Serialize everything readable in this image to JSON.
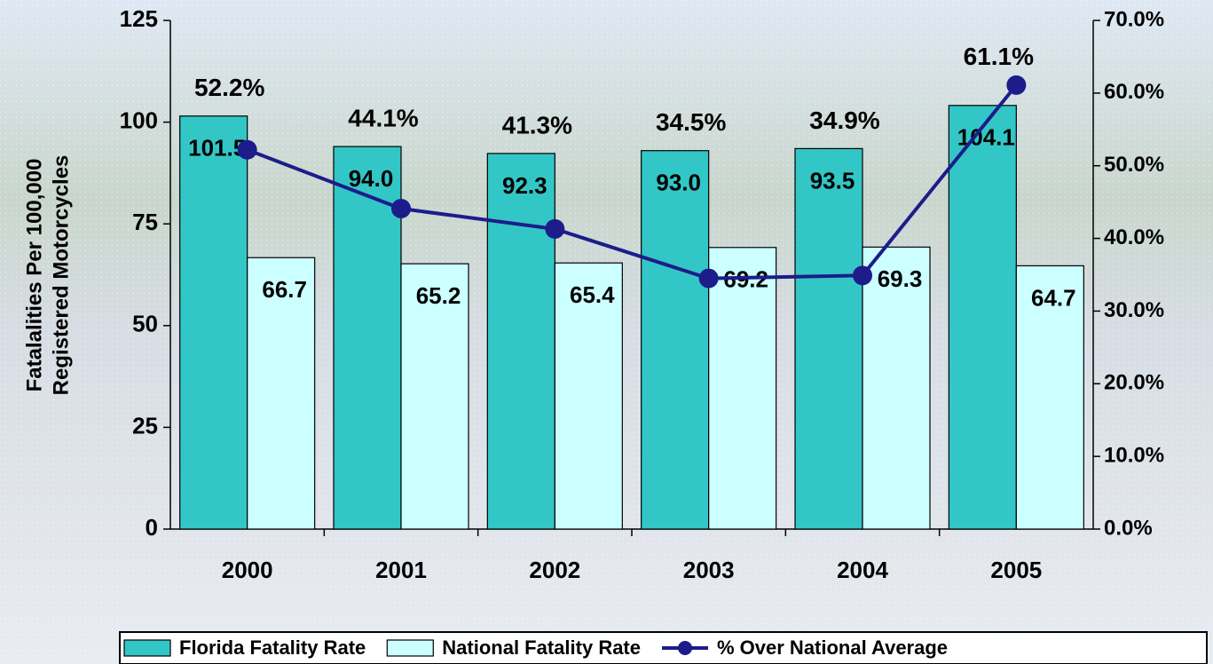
{
  "chart_data": {
    "type": "bar_line",
    "y_label": [
      "Fatalalities Per 100,000",
      "Registered Motorcycles"
    ],
    "categories": [
      "2000",
      "2001",
      "2002",
      "2003",
      "2004",
      "2005"
    ],
    "series": [
      {
        "name": "Florida Fatality Rate",
        "type": "bar",
        "color": "#33c6c6",
        "values": [
          101.5,
          94.0,
          92.3,
          93.0,
          93.5,
          104.1
        ],
        "value_labels": [
          "101.5",
          "94.0",
          "92.3",
          "93.0",
          "93.5",
          "104.1"
        ]
      },
      {
        "name": "National Fatality Rate",
        "type": "bar",
        "color": "#ccffff",
        "values": [
          66.7,
          65.2,
          65.4,
          69.2,
          69.3,
          64.7
        ]
      },
      {
        "name": "% Over National Average",
        "type": "line",
        "axis": "y2",
        "color": "#1c1c8a",
        "values": [
          52.2,
          44.1,
          41.3,
          34.5,
          34.9,
          61.1
        ],
        "value_labels": [
          "52.2%",
          "44.1%",
          "41.3%",
          "34.5%",
          "34.9%",
          "61.1%"
        ]
      }
    ],
    "ylim": [
      0,
      125
    ],
    "yticks": [
      0,
      25,
      50,
      75,
      100,
      125
    ],
    "y2lim": [
      0,
      70
    ],
    "y2ticks": [
      {
        "value": 0,
        "label": "0.0%"
      },
      {
        "value": 10,
        "label": "10.0%"
      },
      {
        "value": 20,
        "label": "20.0%"
      },
      {
        "value": 30,
        "label": "30.0%"
      },
      {
        "value": 40,
        "label": "40.0%"
      },
      {
        "value": 50,
        "label": "50.0%"
      },
      {
        "value": 60,
        "label": "60.0%"
      },
      {
        "value": 70,
        "label": "70.0%"
      }
    ],
    "legend": "bottom"
  }
}
